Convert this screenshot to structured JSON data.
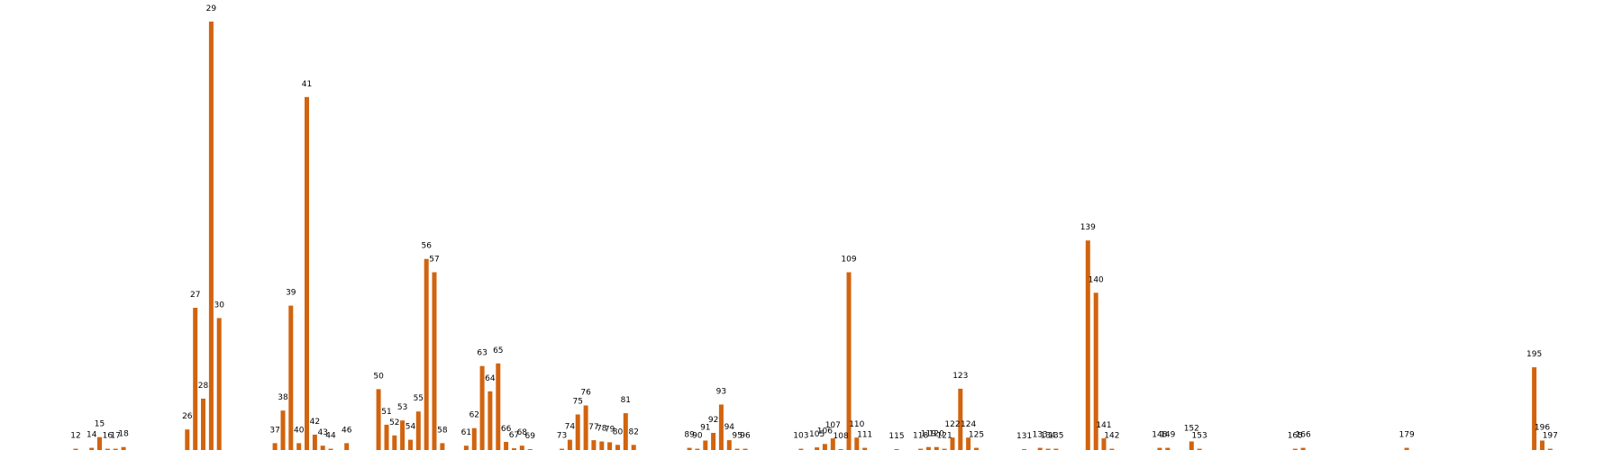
{
  "chart_data": {
    "type": "bar",
    "bar_color": "#d2640f",
    "axes_visible": false,
    "grid": false,
    "ylim": [
      0,
      100
    ],
    "points": [
      {
        "label": "12",
        "value": 0.3
      },
      {
        "label": "14",
        "value": 0.5
      },
      {
        "label": "15",
        "value": 3.0
      },
      {
        "label": "16",
        "value": 0.3
      },
      {
        "label": "17",
        "value": 0.3
      },
      {
        "label": "18",
        "value": 0.7
      },
      {
        "label": "26",
        "value": 4.8
      },
      {
        "label": "27",
        "value": 33.2
      },
      {
        "label": "28",
        "value": 12.0
      },
      {
        "label": "29",
        "value": 100.0
      },
      {
        "label": "30",
        "value": 30.8
      },
      {
        "label": "37",
        "value": 1.6
      },
      {
        "label": "38",
        "value": 9.2
      },
      {
        "label": "39",
        "value": 33.7
      },
      {
        "label": "40",
        "value": 1.6
      },
      {
        "label": "41",
        "value": 82.4
      },
      {
        "label": "42",
        "value": 3.6
      },
      {
        "label": "43",
        "value": 1.0
      },
      {
        "label": "44",
        "value": 0.3
      },
      {
        "label": "46",
        "value": 1.6
      },
      {
        "label": "50",
        "value": 14.2
      },
      {
        "label": "51",
        "value": 5.9
      },
      {
        "label": "52",
        "value": 3.4
      },
      {
        "label": "53",
        "value": 6.9
      },
      {
        "label": "54",
        "value": 2.4
      },
      {
        "label": "55",
        "value": 9.0
      },
      {
        "label": "56",
        "value": 44.6
      },
      {
        "label": "57",
        "value": 41.5
      },
      {
        "label": "58",
        "value": 1.6
      },
      {
        "label": "61",
        "value": 1.0
      },
      {
        "label": "62",
        "value": 5.1
      },
      {
        "label": "63",
        "value": 19.6
      },
      {
        "label": "64",
        "value": 13.7
      },
      {
        "label": "65",
        "value": 20.2
      },
      {
        "label": "66",
        "value": 1.9
      },
      {
        "label": "67",
        "value": 0.4
      },
      {
        "label": "68",
        "value": 1.0
      },
      {
        "label": "69",
        "value": 0.2
      },
      {
        "label": "73",
        "value": 0.3
      },
      {
        "label": "74",
        "value": 2.4
      },
      {
        "label": "75",
        "value": 8.3
      },
      {
        "label": "76",
        "value": 10.4
      },
      {
        "label": "77",
        "value": 2.3
      },
      {
        "label": "78",
        "value": 2.0
      },
      {
        "label": "79",
        "value": 1.8
      },
      {
        "label": "80",
        "value": 1.2
      },
      {
        "label": "81",
        "value": 8.6
      },
      {
        "label": "82",
        "value": 1.2
      },
      {
        "label": "89",
        "value": 0.5
      },
      {
        "label": "90",
        "value": 0.3
      },
      {
        "label": "91",
        "value": 2.2
      },
      {
        "label": "92",
        "value": 4.0
      },
      {
        "label": "93",
        "value": 10.6
      },
      {
        "label": "94",
        "value": 2.3
      },
      {
        "label": "95",
        "value": 0.3
      },
      {
        "label": "96",
        "value": 0.3
      },
      {
        "label": "103",
        "value": 0.3
      },
      {
        "label": "105",
        "value": 0.6
      },
      {
        "label": "106",
        "value": 1.4
      },
      {
        "label": "107",
        "value": 2.7
      },
      {
        "label": "108",
        "value": 0.2
      },
      {
        "label": "109",
        "value": 41.5
      },
      {
        "label": "110",
        "value": 2.9
      },
      {
        "label": "111",
        "value": 0.5
      },
      {
        "label": "115",
        "value": 0.2
      },
      {
        "label": "118",
        "value": 0.3
      },
      {
        "label": "119",
        "value": 0.7
      },
      {
        "label": "120",
        "value": 0.7
      },
      {
        "label": "121",
        "value": 0.3
      },
      {
        "label": "122",
        "value": 2.9
      },
      {
        "label": "123",
        "value": 14.3
      },
      {
        "label": "124",
        "value": 2.9
      },
      {
        "label": "125",
        "value": 0.5
      },
      {
        "label": "131",
        "value": 0.2
      },
      {
        "label": "133",
        "value": 0.5
      },
      {
        "label": "134",
        "value": 0.3
      },
      {
        "label": "135",
        "value": 0.3
      },
      {
        "label": "139",
        "value": 48.9
      },
      {
        "label": "140",
        "value": 36.7
      },
      {
        "label": "141",
        "value": 2.7
      },
      {
        "label": "142",
        "value": 0.3
      },
      {
        "label": "148",
        "value": 0.5
      },
      {
        "label": "149",
        "value": 0.5
      },
      {
        "label": "152",
        "value": 2.0
      },
      {
        "label": "153",
        "value": 0.3
      },
      {
        "label": "165",
        "value": 0.3
      },
      {
        "label": "166",
        "value": 0.5
      },
      {
        "label": "179",
        "value": 0.5
      },
      {
        "label": "195",
        "value": 19.3
      },
      {
        "label": "196",
        "value": 2.2
      },
      {
        "label": "197",
        "value": 0.3
      }
    ]
  }
}
